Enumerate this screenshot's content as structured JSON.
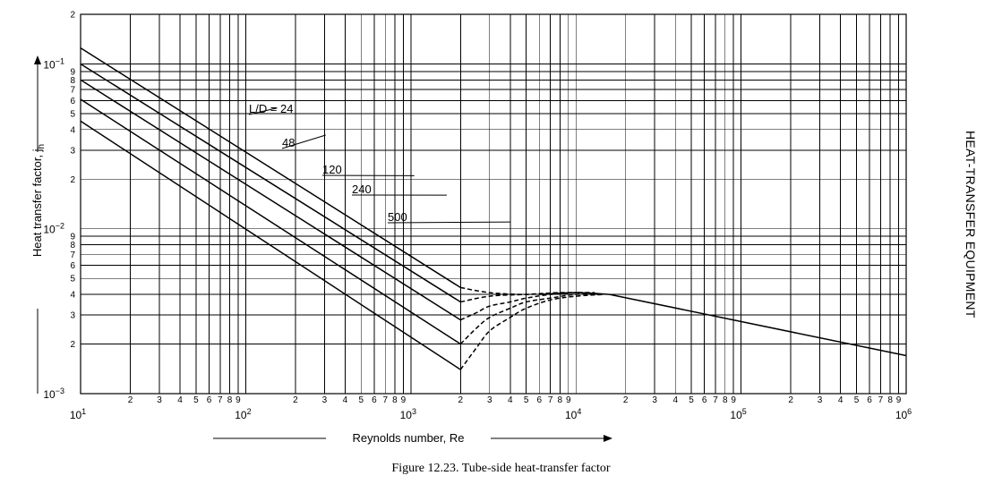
{
  "page": {
    "caption": "Figure 12.23.   Tube-side heat-transfer factor",
    "side_label": "HEAT-TRANSFER EQUIPMENT"
  },
  "chart_data": {
    "type": "line",
    "title": "",
    "xlabel": "Reynolds number, Re",
    "ylabel_main": "Heat transfer factor, j",
    "ylabel_sub": "h",
    "xscale": "log",
    "yscale": "log",
    "xlim": [
      10,
      1000000
    ],
    "ylim": [
      0.001,
      0.2
    ],
    "grid": true,
    "x_decade_labels": [
      {
        "base": "10",
        "exp": "1"
      },
      {
        "base": "10",
        "exp": "2"
      },
      {
        "base": "10",
        "exp": "3"
      },
      {
        "base": "10",
        "exp": "4"
      },
      {
        "base": "10",
        "exp": "5"
      },
      {
        "base": "10",
        "exp": "6"
      }
    ],
    "x_minor_tick_labels": [
      "2",
      "3",
      "4",
      "5",
      "6",
      "7",
      "8",
      "9"
    ],
    "y_decade_labels": [
      {
        "base": "10",
        "exp": "−1",
        "value": 0.1
      },
      {
        "base": "10",
        "exp": "−2",
        "value": 0.01
      },
      {
        "base": "10",
        "exp": "−3",
        "value": 0.001
      }
    ],
    "y_minor_tick_labels": [
      "2",
      "3",
      "4",
      "5",
      "6",
      "7",
      "8",
      "9"
    ],
    "y_top_label": "2",
    "series": [
      {
        "name": "L/D = 24",
        "label": "L/D = 24",
        "x": [
          10,
          2000
        ],
        "y": [
          0.125,
          0.0044
        ]
      },
      {
        "name": "48",
        "label": "48",
        "x": [
          10,
          2000
        ],
        "y": [
          0.1,
          0.0036
        ]
      },
      {
        "name": "120",
        "label": "120",
        "x": [
          10,
          2000
        ],
        "y": [
          0.08,
          0.0028
        ]
      },
      {
        "name": "240",
        "label": "240",
        "x": [
          10,
          2000
        ],
        "y": [
          0.061,
          0.002
        ]
      },
      {
        "name": "500",
        "label": "500",
        "x": [
          10,
          2000
        ],
        "y": [
          0.045,
          0.0014
        ]
      }
    ],
    "transition_curves": [
      {
        "x": [
          2000,
          3000,
          5000,
          8000
        ],
        "y": [
          0.0044,
          0.0041,
          0.004,
          0.0041
        ]
      },
      {
        "x": [
          2000,
          3000,
          5000,
          8000,
          11000
        ],
        "y": [
          0.0036,
          0.0039,
          0.004,
          0.0041,
          0.0041
        ]
      },
      {
        "x": [
          2000,
          2500,
          3000,
          4000,
          5000,
          7000,
          10000,
          13000
        ],
        "y": [
          0.0028,
          0.0031,
          0.0034,
          0.0036,
          0.0038,
          0.004,
          0.0041,
          0.0041
        ]
      },
      {
        "x": [
          2000,
          2500,
          3000,
          4000,
          5000,
          7000,
          10000,
          14000
        ],
        "y": [
          0.002,
          0.0025,
          0.0029,
          0.0033,
          0.0036,
          0.0038,
          0.004,
          0.004
        ]
      },
      {
        "x": [
          2000,
          2500,
          3000,
          4000,
          5000,
          7000,
          10000,
          15000
        ],
        "y": [
          0.0014,
          0.0019,
          0.0024,
          0.0029,
          0.0033,
          0.0037,
          0.0039,
          0.004
        ]
      }
    ],
    "turbulent_curve": {
      "x": [
        6000,
        10000,
        16000,
        1000000
      ],
      "y": [
        0.004,
        0.0041,
        0.004,
        0.0017
      ]
    },
    "annotations": [
      {
        "text": "L/D = 24",
        "x_data": 155,
        "y_data": 0.054,
        "tx": 1340,
        "ty": 0.0275
      },
      {
        "text": "48",
        "x_data": 305,
        "y_data": 0.037,
        "tx": 1050,
        "ty": 0.0345
      },
      {
        "text": "120",
        "x_data": 1050,
        "y_data": 0.021,
        "tx": 1080,
        "ty": 0.0255
      },
      {
        "text": "240",
        "x_data": 1650,
        "y_data": 0.016,
        "tx": 1250,
        "ty": 0.0215
      },
      {
        "text": "500",
        "x_data": 4000,
        "y_data": 0.011,
        "tx": 1300,
        "ty": 0.0195
      }
    ]
  }
}
